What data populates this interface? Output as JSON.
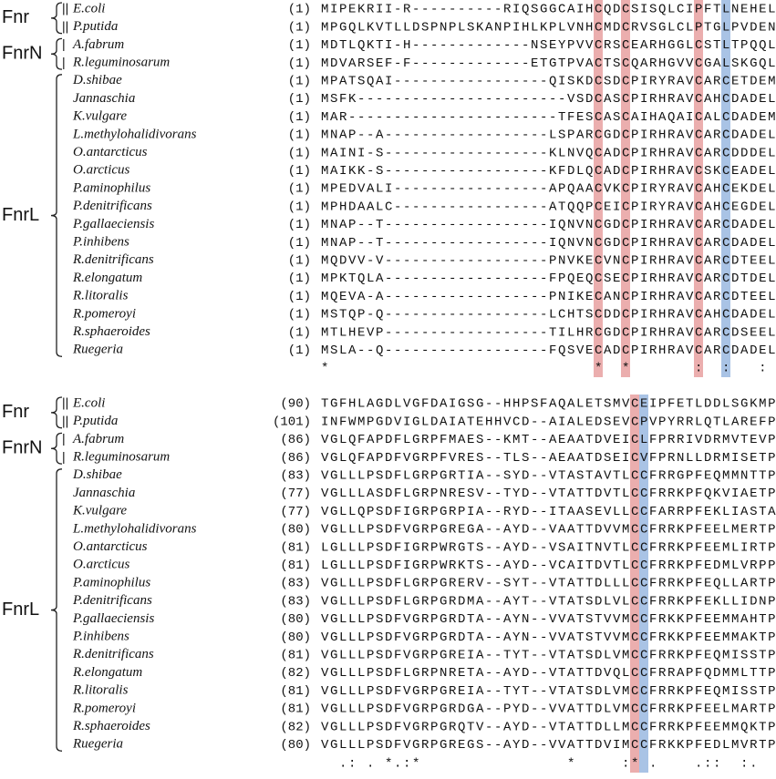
{
  "blocks": [
    {
      "groups": [
        {
          "label": "Fnr",
          "first": 0,
          "last": 1
        },
        {
          "label": "FnrN",
          "first": 2,
          "last": 3
        },
        {
          "label": "FnrL",
          "first": 4,
          "last": 19
        }
      ],
      "rows": [
        {
          "prefix": "||",
          "name": "E.coli",
          "start": "(1)",
          "seq": "MIPEKRII-R----------RIQSGGCAIHCQDCSISQLCIPFTLNEHEL"
        },
        {
          "prefix": "||",
          "name": "P.putida",
          "start": "(1)",
          "seq": "MPGQLKVTLLDSPNPLSKANPIHLKPLVNHCMDCRVSGLCLPTGLPVDEN"
        },
        {
          "prefix": "|",
          "name": "A.fabrum",
          "start": "(1)",
          "seq": "MDTLQKTI-H-------------NSEYPVVCRSCEARHGGLCSTLTPQQL"
        },
        {
          "prefix": "|",
          "name": "R.leguminosarum",
          "start": "(1)",
          "seq": "MDVARSEF-F-------------ETGTPVACTSCQARHGVVCGALSKGQL"
        },
        {
          "name": "D.shibae",
          "start": "(1)",
          "seq": "MPATSQAI-----------------QISKDCSDCPIRYRAVCARCETDEM"
        },
        {
          "name": "Jannaschia",
          "start": "(1)",
          "seq": "MSFK-----------------------VSDCASCPIRHRAVCAHCDADEL"
        },
        {
          "name": "K.vulgare",
          "start": "(1)",
          "seq": "MAR-----------------------TFESCASCAIHAQAICALCDADEM"
        },
        {
          "name": "L.methylohalidivorans",
          "start": "(1)",
          "seq": "MNAP--A------------------LSPARCGDCPIRHRAVCARCDADEL"
        },
        {
          "name": "O.antarcticus",
          "start": "(1)",
          "seq": "MAINI-S------------------KLNVQCADCPIRHRAVCARCDDDEL"
        },
        {
          "name": "O.arcticus",
          "start": "(1)",
          "seq": "MAIKK-S------------------KFDLQCADCPIRHRAVCSKCEADEL"
        },
        {
          "name": "P.aminophilus",
          "start": "(1)",
          "seq": "MPEDVALI-----------------APQAACVKCPIRYRAVCAHCEKDEL"
        },
        {
          "name": "P.denitrificans",
          "start": "(1)",
          "seq": "MPHDAALC-----------------ATQQPCEICPIRYRAVCAHCEGDEL"
        },
        {
          "name": "P.gallaeciensis",
          "start": "(1)",
          "seq": "MNAP--T------------------IQNVNCGDCPIRHRAVCARCDADEL"
        },
        {
          "name": "P.inhibens",
          "start": "(1)",
          "seq": "MNAP--T------------------IQNVNCGDCPIRHRAVCARCDADEL"
        },
        {
          "name": "R.denitrificans",
          "start": "(1)",
          "seq": "MQDVV-V------------------PNVKECVNCPIRHRAVCARCDTEEL"
        },
        {
          "name": "R.elongatum",
          "start": "(1)",
          "seq": "MPKTQLA------------------FPQEQCSECPIRHRAVCARCDTDEL"
        },
        {
          "name": "R.litoralis",
          "start": "(1)",
          "seq": "MQEVA-A------------------PNIKECANCPIRHRAVCARCDTEEL"
        },
        {
          "name": "R.pomeroyi",
          "start": "(1)",
          "seq": "MSTQP-Q------------------LCHTSCDDCPIRHRAVCAHCDADEL"
        },
        {
          "name": "R.sphaeroides",
          "start": "(1)",
          "seq": "MTLHEVP------------------TILHRCGDCPIRHRAVCARCDSEEL"
        },
        {
          "name": "Ruegeria",
          "start": "(1)",
          "seq": "MSLA--Q------------------FQSVECADCPIRHRAVCARCDADEL"
        }
      ],
      "conservation": "*                             *  *       :  :   :"
    },
    {
      "groups": [
        {
          "label": "Fnr",
          "first": 0,
          "last": 1
        },
        {
          "label": "FnrN",
          "first": 2,
          "last": 3
        },
        {
          "label": "FnrL",
          "first": 4,
          "last": 19
        }
      ],
      "rows": [
        {
          "prefix": "||",
          "name": "E.coli",
          "start": "(90)",
          "seq": "TGFHLAGDLVGFDAIGSG--HHPSFAQALETSMVCEIPFETLDDLSGKMP"
        },
        {
          "prefix": "||",
          "name": "P.putida",
          "start": "(101)",
          "seq": "INFWMPGDVIGLDAIATEHHVCD--AIALEDSEVCPVPYRRLQTLAREFP"
        },
        {
          "prefix": "|",
          "name": "A.fabrum",
          "start": "(86)",
          "seq": "VGLQFAPDFLGRPFMAES--KMT--AEAATDVEICLFPRRIVDRMVTEVP"
        },
        {
          "prefix": "|",
          "name": "R.leguminosarum",
          "start": "(86)",
          "seq": "VGLQFAPDFVGRPFVRES--TLS--AEAATDSEICVFPRNLLDRMISETP"
        },
        {
          "name": "D.shibae",
          "start": "(83)",
          "seq": "VGLLLPSDFLGRPGRTIA--SYD--VTASTAVTLCCFRRGPFEQMMNTTP"
        },
        {
          "name": "Jannaschia",
          "start": "(77)",
          "seq": "VGLLLASDFLGRPNRESV--TYD--VTATTDVTLCCFRRKPFQKVIAETP"
        },
        {
          "name": "K.vulgare",
          "start": "(77)",
          "seq": "VGLLQPSDFIGRPGRPIA--RYD--ITAASEVLLCCFARRPFEKLIASTA"
        },
        {
          "name": "L.methylohalidivorans",
          "start": "(80)",
          "seq": "VGLLLPSDFVGRPGREGA--AYD--VAATTDVVMCCFRRKPFEELMERTP"
        },
        {
          "name": "O.antarcticus",
          "start": "(81)",
          "seq": "LGLLLPSDFIGRPWRGTS--AYD--VSAITNVTLCCFRRKPFEEMLIRTP"
        },
        {
          "name": "O.arcticus",
          "start": "(81)",
          "seq": "LGLLLPSDFIGRPWRKTS--AYD--VCAITDVTLCCFRRKPFEDMLVRPP"
        },
        {
          "name": "P.aminophilus",
          "start": "(83)",
          "seq": "VGLLLPSDFLGRPGRERV--SYT--VTATTDLLLCCFRRKPFEQLLARTP"
        },
        {
          "name": "P.denitrificans",
          "start": "(83)",
          "seq": "VGLLLPSDFLGRPGRDMA--AYT--VTATSDLVLCCFRRKPFEKLLIDNP"
        },
        {
          "name": "P.gallaeciensis",
          "start": "(80)",
          "seq": "VGLLLPSDFVGRPGRDTA--AYN--VVATSTVVMCCFRKKPFEEMMAHTP"
        },
        {
          "name": "P.inhibens",
          "start": "(80)",
          "seq": "VGLLLPSDFVGRPGRDTA--AYN--VVATSTVVMCCFRKKPFEEMMAKTP"
        },
        {
          "name": "R.denitrificans",
          "start": "(81)",
          "seq": "VGLLLPSDFVGRPGREIA--TYT--VTATSDLVMCCFRRKPFEQMISSTP"
        },
        {
          "name": "R.elongatum",
          "start": "(82)",
          "seq": "VGLLLPSDFLGRPNRETA--AYD--VTATTDVQLCCFRRAPFQDMMLTTP"
        },
        {
          "name": "R.litoralis",
          "start": "(81)",
          "seq": "VGLLLPSDFVGRPGREIA--TYT--VTATSDLVMCCFRRKPFEQMISSTP"
        },
        {
          "name": "R.pomeroyi",
          "start": "(81)",
          "seq": "VGLLLPSDFVGRPGRDGA--PYD--VVATTDLVMCCFRRKPFEELMARTP"
        },
        {
          "name": "R.sphaeroides",
          "start": "(82)",
          "seq": "VGLLLPSDFVGRPGRQTV--AYD--VTATTDLLMCCFRRKPFEEMMQKTP"
        },
        {
          "name": "Ruegeria",
          "start": "(80)",
          "seq": "VGLLLPSDFVGRPGREGS--AYD--VVATTDVIMCCFRKKPFEDLMVRTP"
        }
      ],
      "conservation": "  .: . *.:*                *     :* .    .::  :."
    }
  ]
}
